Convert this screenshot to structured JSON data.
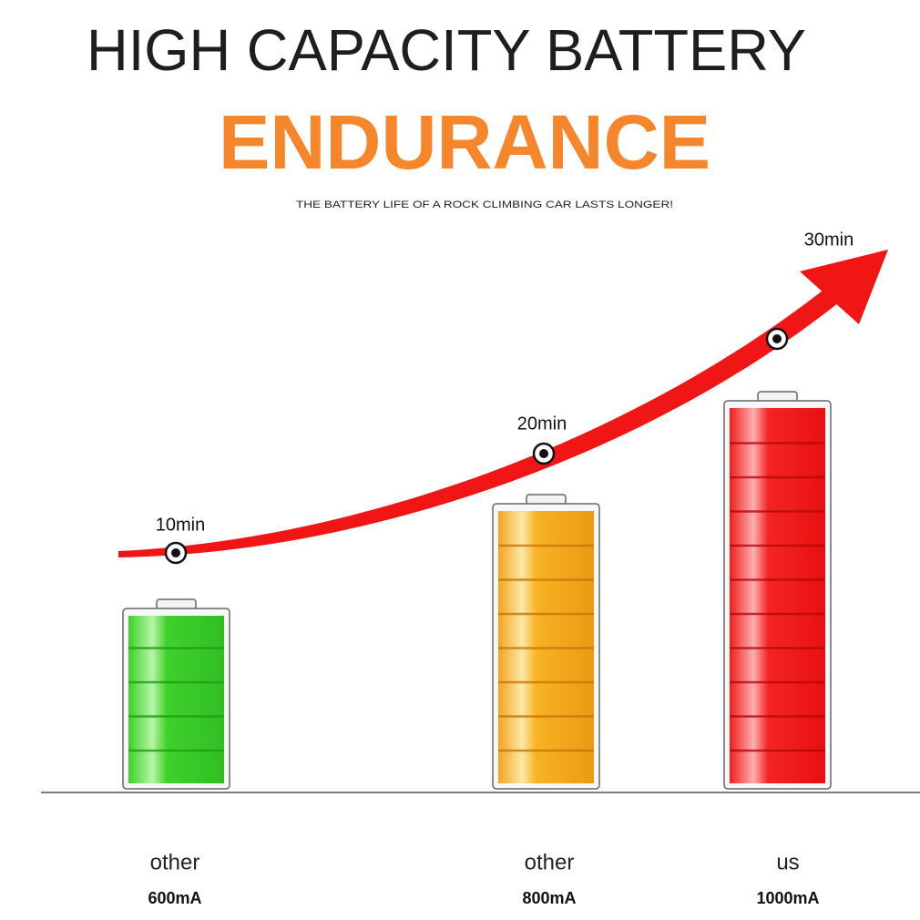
{
  "header": {
    "title": "HIGH CAPACITY BATTERY",
    "headline": "ENDURANCE",
    "subtitle": "THE BATTERY LIFE OF A ROCK CLIMBING CAR LASTS LONGER!"
  },
  "items": [
    {
      "time": "10min",
      "label": "other",
      "capacity": "600mA"
    },
    {
      "time": "20min",
      "label": "other",
      "capacity": "800mA"
    },
    {
      "time": "30min",
      "label": "us",
      "capacity": "1000mA"
    }
  ]
}
